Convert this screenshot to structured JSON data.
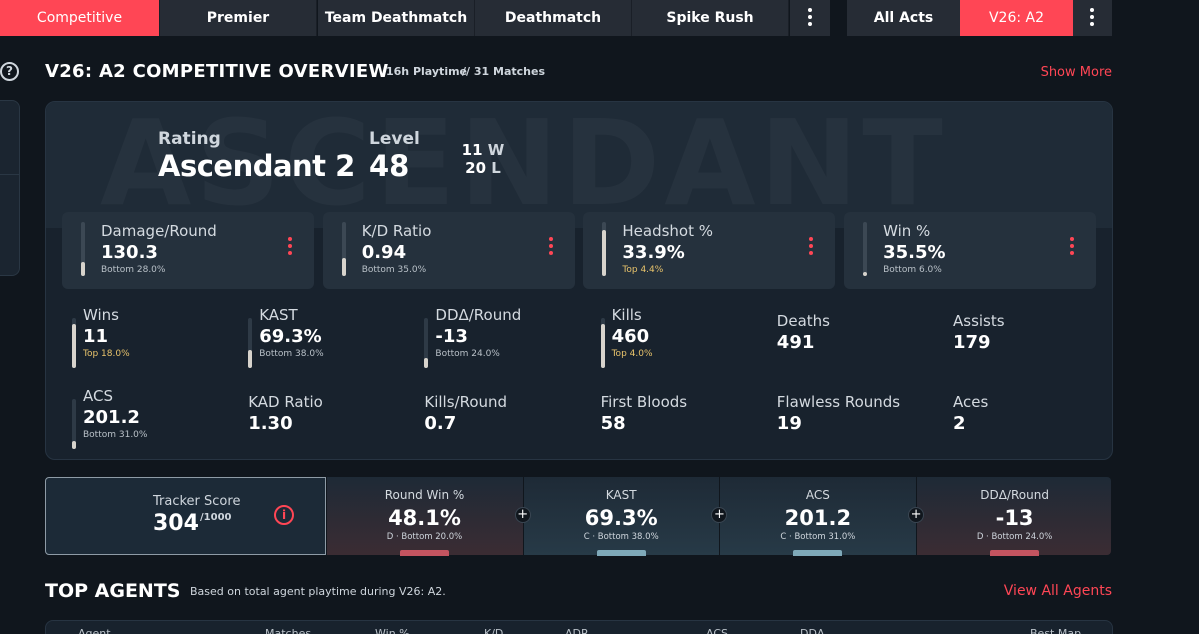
{
  "tabs": {
    "modes": [
      "Competitive",
      "Premier",
      "Team Deathmatch",
      "Deathmatch",
      "Spike Rush"
    ],
    "acts": [
      "All Acts",
      "V26: A2"
    ]
  },
  "overview": {
    "title": "V26: A2 COMPETITIVE OVERVIEW",
    "playtime": "16h Playtime",
    "matches": "// 31 Matches",
    "show_more": "Show More",
    "watermark": "ASCENDANT",
    "rating_label": "Rating",
    "rank": "Ascendant 2",
    "level_label": "Level",
    "level": "48",
    "wins": 11,
    "wins_suffix": "W",
    "losses": 20,
    "losses_suffix": "L"
  },
  "main_stats": [
    {
      "label": "Damage/Round",
      "value": "130.3",
      "sub": "Bottom 28.0%"
    },
    {
      "label": "K/D Ratio",
      "value": "0.94",
      "sub": "Bottom 35.0%"
    },
    {
      "label": "Headshot %",
      "value": "33.9%",
      "sub": "Top 4.4%"
    },
    {
      "label": "Win %",
      "value": "35.5%",
      "sub": "Bottom 6.0%"
    }
  ],
  "stats": [
    {
      "label": "Wins",
      "value": "11",
      "sub": "Top 18.0%"
    },
    {
      "label": "KAST",
      "value": "69.3%",
      "sub": "Bottom 38.0%"
    },
    {
      "label": "DDΔ/Round",
      "value": "-13",
      "sub": "Bottom 24.0%"
    },
    {
      "label": "Kills",
      "value": "460",
      "sub": "Top 4.0%"
    },
    {
      "label": "Deaths",
      "value": "491"
    },
    {
      "label": "Assists",
      "value": "179"
    },
    {
      "label": "ACS",
      "value": "201.2",
      "sub": "Bottom 31.0%"
    },
    {
      "label": "KAD Ratio",
      "value": "1.30"
    },
    {
      "label": "Kills/Round",
      "value": "0.7"
    },
    {
      "label": "First Bloods",
      "value": "58"
    },
    {
      "label": "Flawless Rounds",
      "value": "19"
    },
    {
      "label": "Aces",
      "value": "2"
    }
  ],
  "tracker": {
    "label": "Tracker Score",
    "score": "304",
    "max": "/1000",
    "metrics": [
      {
        "label": "Round Win %",
        "value": "48.1%",
        "grade": "D · Bottom 20.0%"
      },
      {
        "label": "KAST",
        "value": "69.3%",
        "grade": "C · Bottom 38.0%"
      },
      {
        "label": "ACS",
        "value": "201.2",
        "grade": "C · Bottom 31.0%"
      },
      {
        "label": "DDΔ/Round",
        "value": "-13",
        "grade": "D · Bottom 24.0%"
      }
    ]
  },
  "top_agents": {
    "title": "TOP AGENTS",
    "subtitle": "Based on total agent playtime during V26: A2.",
    "view_all": "View All Agents",
    "columns": [
      "Agent",
      "Matches",
      "Win %",
      "K/D",
      "ADR",
      "ACS",
      "DDΔ",
      "Best Map"
    ]
  }
}
